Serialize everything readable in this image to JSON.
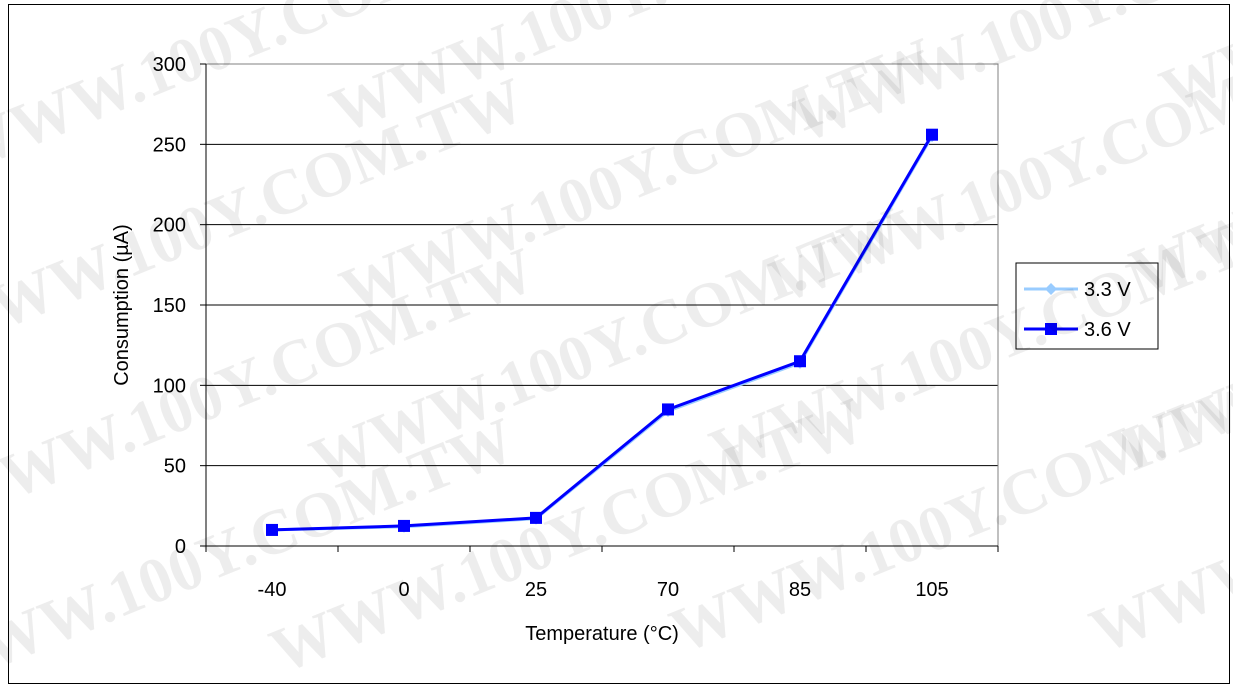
{
  "chart_data": {
    "type": "line",
    "categories": [
      "-40",
      "0",
      "25",
      "70",
      "85",
      "105"
    ],
    "series": [
      {
        "name": "3.3 V",
        "values": [
          10,
          12,
          17,
          84,
          114,
          255
        ],
        "color": "#99ccff",
        "marker": "diamond"
      },
      {
        "name": "3.6 V",
        "values": [
          10,
          12.5,
          17.5,
          85,
          115,
          256
        ],
        "color": "#0000ff",
        "marker": "square"
      }
    ],
    "xlabel": "Temperature (°C)",
    "ylabel": "Consumption (µA)",
    "ylim": [
      0,
      300
    ],
    "yticks": [
      "0",
      "50",
      "100",
      "150",
      "200",
      "250",
      "300"
    ],
    "grid": true,
    "legend_position": "right"
  },
  "watermark": {
    "text": "WWW.100Y.COM.TW"
  }
}
